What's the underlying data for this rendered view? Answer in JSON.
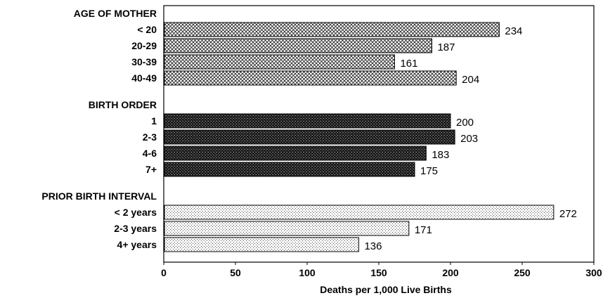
{
  "chart_data": {
    "type": "bar",
    "orientation": "horizontal",
    "xlabel": "Deaths per 1,000 Live Births",
    "xlim": [
      0,
      300
    ],
    "xticks": [
      "0",
      "50",
      "100",
      "150",
      "200",
      "250",
      "300"
    ],
    "grid": false,
    "groups": [
      {
        "label": "AGE OF MOTHER",
        "pattern": "crosshatch",
        "categories": [
          "< 20",
          "20-29",
          "30-39",
          "40-49"
        ],
        "values": [
          234,
          187,
          161,
          204
        ]
      },
      {
        "label": "BIRTH ORDER",
        "pattern": "dark-stipple",
        "categories": [
          "1",
          "2-3",
          "4-6",
          "7+"
        ],
        "values": [
          200,
          203,
          183,
          175
        ]
      },
      {
        "label": "PRIOR BIRTH INTERVAL",
        "pattern": "light-dots",
        "categories": [
          "< 2 years",
          "2-3 years",
          "4+ years"
        ],
        "values": [
          272,
          171,
          136
        ]
      }
    ]
  }
}
